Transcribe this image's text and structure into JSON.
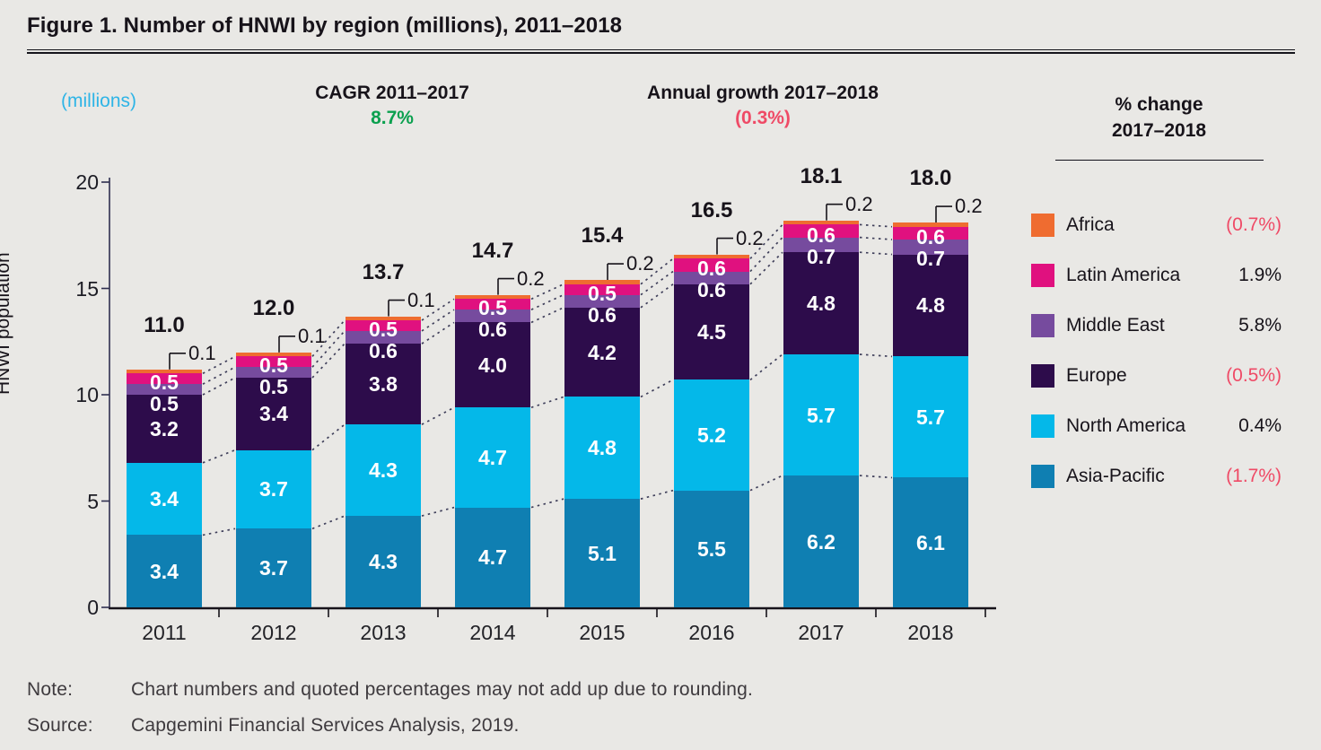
{
  "title": "Figure 1. Number of HNWI by region (millions), 2011–2018",
  "header": {
    "units_label": "(millions)",
    "cagr_label": "CAGR 2011–2017",
    "cagr_value": "8.7%",
    "growth_label": "Annual growth 2017–2018",
    "growth_value": "(0.3%)"
  },
  "chart_data": {
    "type": "bar",
    "stacked": true,
    "title": "Number of HNWI by region (millions), 2011–2018",
    "categories": [
      "2011",
      "2012",
      "2013",
      "2014",
      "2015",
      "2016",
      "2017",
      "2018"
    ],
    "series": [
      {
        "name": "Asia-Pacific",
        "color": "#0f7fb2",
        "values": [
          3.4,
          3.7,
          4.3,
          4.7,
          5.1,
          5.5,
          6.2,
          6.1
        ]
      },
      {
        "name": "North America",
        "color": "#04b8e9",
        "values": [
          3.4,
          3.7,
          4.3,
          4.7,
          4.8,
          5.2,
          5.7,
          5.7
        ]
      },
      {
        "name": "Europe",
        "color": "#2d0c4b",
        "values": [
          3.2,
          3.4,
          3.8,
          4.0,
          4.2,
          4.5,
          4.8,
          4.8
        ]
      },
      {
        "name": "Middle East",
        "color": "#764b9e",
        "values": [
          0.5,
          0.5,
          0.6,
          0.6,
          0.6,
          0.6,
          0.7,
          0.7
        ]
      },
      {
        "name": "Latin America",
        "color": "#e0117f",
        "values": [
          0.5,
          0.5,
          0.5,
          0.5,
          0.5,
          0.6,
          0.6,
          0.6
        ]
      },
      {
        "name": "Africa",
        "color": "#ef6c30",
        "values": [
          0.1,
          0.1,
          0.1,
          0.2,
          0.2,
          0.2,
          0.2,
          0.2
        ]
      }
    ],
    "totals": [
      "11.0",
      "12.0",
      "13.7",
      "14.7",
      "15.4",
      "16.5",
      "18.1",
      "18.0"
    ],
    "africa_callouts": [
      "0.1",
      "0.1",
      "0.1",
      "0.2",
      "0.2",
      "0.2",
      "0.2",
      "0.2"
    ],
    "ylabel": "HNWI population",
    "yticks": [
      0,
      5,
      10,
      15,
      20
    ],
    "ylim": [
      0,
      20
    ],
    "grid": false,
    "legend_position": "right"
  },
  "legend": {
    "title_line1": "% change",
    "title_line2": "2017–2018",
    "items": [
      {
        "label": "Africa",
        "value": "(0.7%)",
        "negative": true,
        "color": "#ef6c30"
      },
      {
        "label": "Latin America",
        "value": "1.9%",
        "negative": false,
        "color": "#e0117f"
      },
      {
        "label": "Middle East",
        "value": "5.8%",
        "negative": false,
        "color": "#764b9e"
      },
      {
        "label": "Europe",
        "value": "(0.5%)",
        "negative": true,
        "color": "#2d0c4b"
      },
      {
        "label": "North America",
        "value": "0.4%",
        "negative": false,
        "color": "#04b8e9"
      },
      {
        "label": "Asia-Pacific",
        "value": "(1.7%)",
        "negative": true,
        "color": "#0f7fb2"
      }
    ]
  },
  "footer": {
    "note_label": "Note:",
    "note_text": "Chart numbers and quoted percentages may not add up due to rounding.",
    "source_label": "Source:",
    "source_text": "Capgemini Financial Services Analysis, 2019."
  },
  "colors": {
    "background": "#e9e8e5",
    "positive_green": "#0aa04e",
    "negative_pink": "#ef4a66",
    "units_cyan": "#2eb4e6",
    "axis": "#2e2e4f",
    "dotted_connector": "#3f3f5a",
    "text_dark": "#17131a"
  }
}
